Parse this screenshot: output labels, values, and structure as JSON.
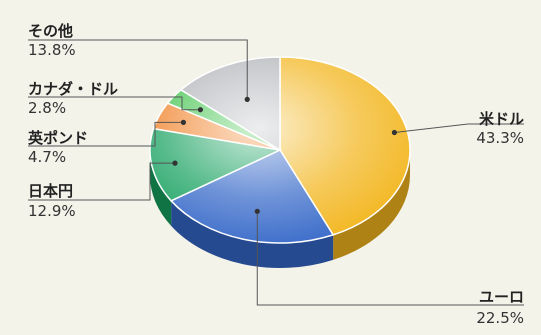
{
  "chart_data": {
    "type": "pie",
    "categories": [
      "米ドル",
      "ユーロ",
      "日本円",
      "英ポンド",
      "カナダ・ドル",
      "その他"
    ],
    "values": [
      43.3,
      22.5,
      12.9,
      4.7,
      2.8,
      13.8
    ],
    "value_labels": [
      "43.3%",
      "22.5%",
      "12.9%",
      "4.7%",
      "2.8%",
      "13.8%"
    ],
    "colors": [
      "#f2b51c",
      "#3467c8",
      "#15a05e",
      "#f07e22",
      "#38c044",
      "#aeb0b6"
    ]
  }
}
